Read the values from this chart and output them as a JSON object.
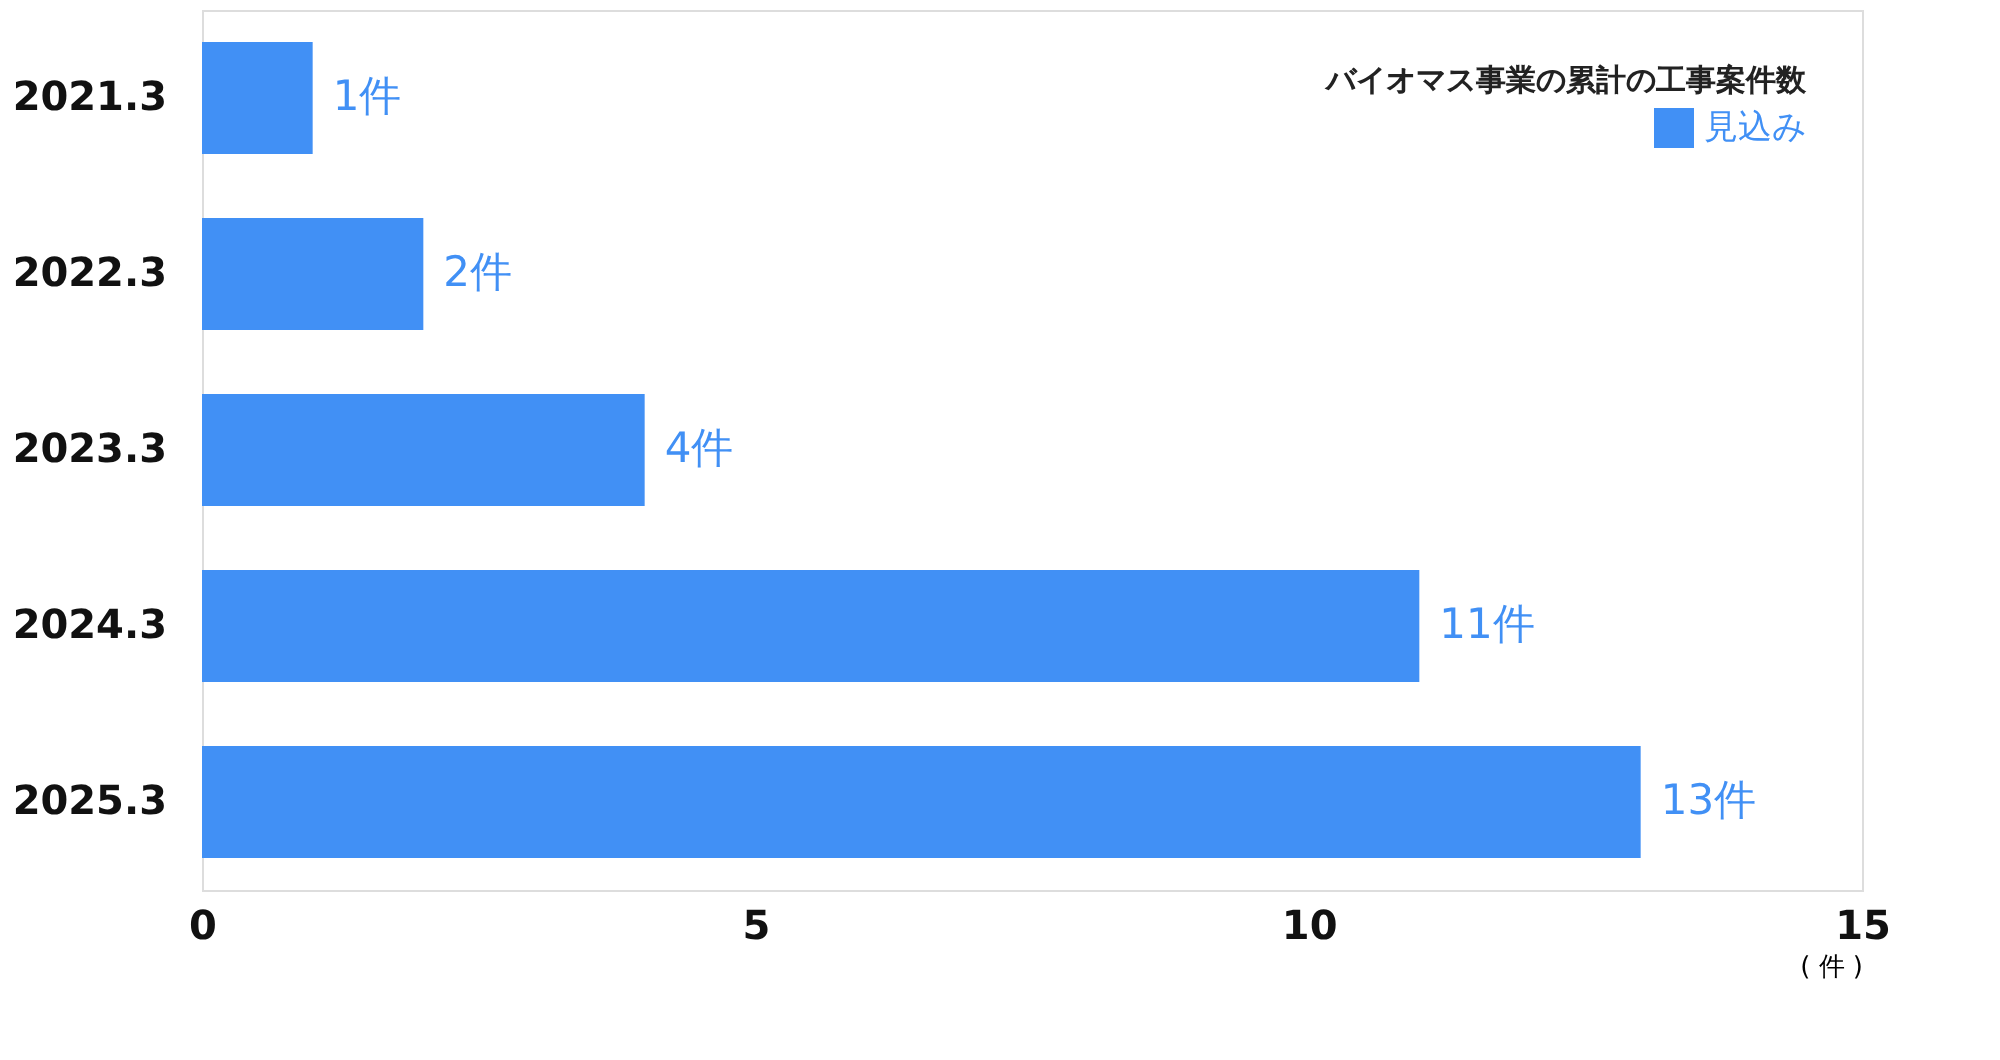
{
  "chart_data": {
    "type": "bar",
    "orientation": "horizontal",
    "categories": [
      "2021.3",
      "2022.3",
      "2023.3",
      "2024.3",
      "2025.3"
    ],
    "series": [
      {
        "name": "見込み",
        "color": "#4190f5",
        "values": [
          1,
          2,
          4,
          11,
          13
        ]
      }
    ],
    "value_labels": [
      "1件",
      "2件",
      "4件",
      "11件",
      "13件"
    ],
    "legend_title": "バイオマス事業の累計の工事案件数",
    "legend": "top right",
    "xlabel": "( 件 )",
    "xlim": [
      0,
      15
    ],
    "xticks": [
      0,
      5,
      10,
      15
    ],
    "grid": false
  }
}
